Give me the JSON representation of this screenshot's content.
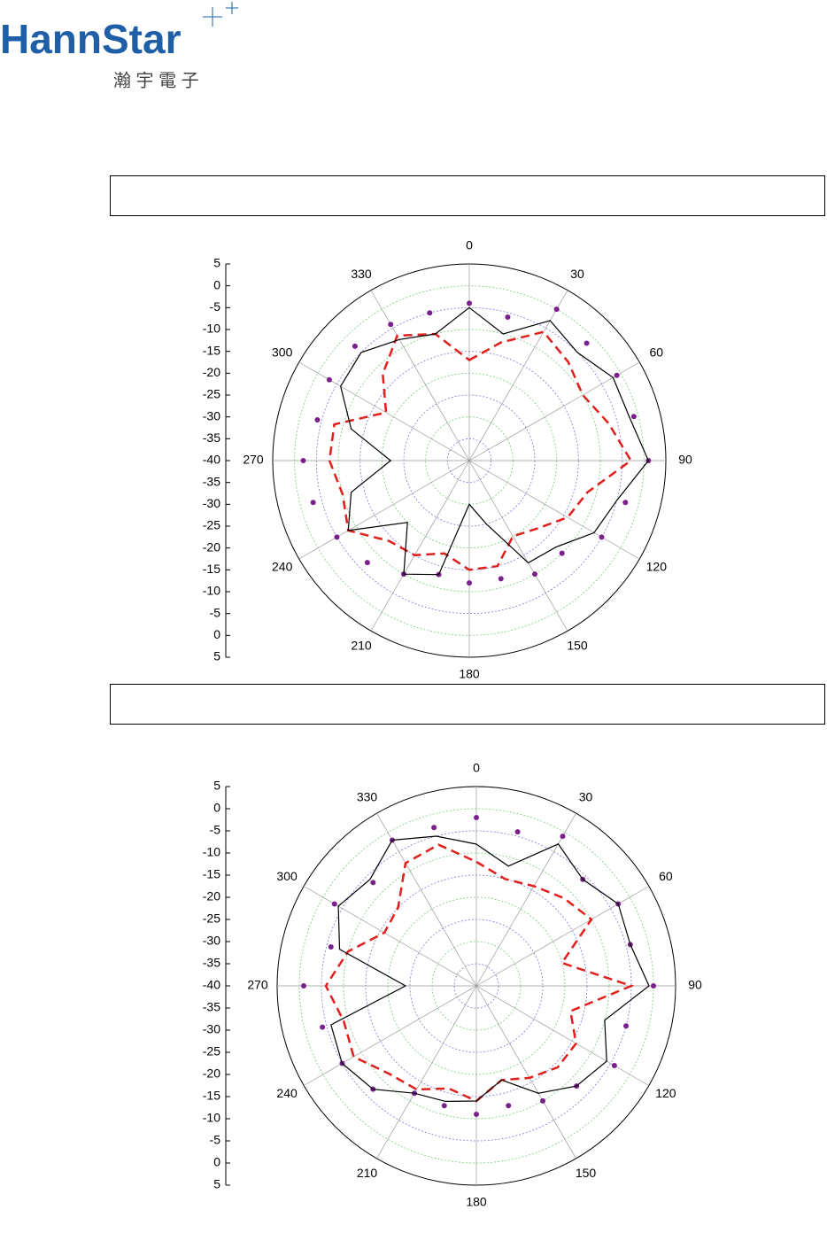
{
  "header": {
    "logo": "HannStar",
    "logo_sub": "瀚 宇 電 子"
  },
  "chart_data": [
    {
      "type": "polar",
      "x": [
        0,
        15,
        30,
        45,
        60,
        75,
        90,
        105,
        120,
        135,
        150,
        165,
        180,
        195,
        210,
        225,
        240,
        255,
        270,
        285,
        300,
        315,
        330,
        345
      ],
      "rlim": [
        -40,
        5
      ],
      "rticks": [
        5,
        0,
        -5,
        -10,
        -15,
        -20,
        -25,
        -30,
        -35,
        -40
      ],
      "thetaticks": [
        0,
        30,
        60,
        90,
        120,
        150,
        180,
        210,
        240,
        270,
        300,
        330
      ],
      "grid": true,
      "series": [
        {
          "color": "#7b1f8c",
          "style": "marker",
          "values": [
            -4,
            -6,
            0,
            -2,
            -1,
            -1,
            1,
            -3,
            -5,
            -10,
            -10,
            -12,
            -12,
            -13,
            -10,
            -7,
            -5,
            -3,
            -2,
            -4,
            -3,
            -3,
            -4,
            -5
          ]
        },
        {
          "color": "#e0201c",
          "style": "dashed",
          "values": [
            -17,
            -12,
            -6,
            -8,
            -10,
            -7,
            -3,
            -12,
            -14,
            -18,
            -20,
            -15,
            -15,
            -18,
            -15,
            -14,
            -8,
            -10,
            -8,
            -8,
            -18,
            -12,
            -7,
            -10
          ]
        },
        {
          "color": "#000000",
          "style": "solid",
          "values": [
            -5,
            -10,
            -3,
            -5,
            -2,
            -2,
            1,
            -5,
            -7,
            -12,
            -13,
            -25,
            -30,
            -13,
            -10,
            -20,
            -8,
            -12,
            -22,
            -12,
            -6,
            -5,
            -8,
            -10
          ]
        }
      ]
    },
    {
      "type": "polar",
      "x": [
        0,
        15,
        30,
        45,
        60,
        75,
        90,
        105,
        120,
        135,
        150,
        165,
        180,
        195,
        210,
        225,
        240,
        255,
        270,
        285,
        300,
        315,
        330,
        345
      ],
      "rlim": [
        -40,
        5
      ],
      "rticks": [
        5,
        0,
        -5,
        -10,
        -15,
        -20,
        -25,
        -30,
        -35,
        -40
      ],
      "thetaticks": [
        0,
        30,
        60,
        90,
        120,
        150,
        180,
        210,
        240,
        270,
        300,
        330
      ],
      "grid": true,
      "series": [
        {
          "color": "#7b1f8c",
          "style": "marker",
          "values": [
            -2,
            -4,
            -1,
            -6,
            -3,
            -4,
            0,
            -5,
            -4,
            -8,
            -10,
            -12,
            -11,
            -12,
            -12,
            -7,
            -5,
            -4,
            -1,
            -6,
            -3,
            -7,
            -2,
            -3
          ]
        },
        {
          "color": "#e0201c",
          "style": "dashed",
          "values": [
            -12,
            -15,
            -14,
            -12,
            -10,
            -20,
            -5,
            -18,
            -14,
            -14,
            -16,
            -18,
            -14,
            -16,
            -13,
            -12,
            -8,
            -9,
            -6,
            -10,
            -16,
            -15,
            -8,
            -7
          ]
        },
        {
          "color": "#000000",
          "style": "solid",
          "values": [
            -8,
            -12,
            -3,
            -6,
            -3,
            -4,
            -1,
            -10,
            -6,
            -8,
            -12,
            -18,
            -14,
            -13,
            -12,
            -7,
            -5,
            -6,
            -24,
            -8,
            -4,
            -6,
            -2,
            -5
          ]
        }
      ]
    }
  ]
}
